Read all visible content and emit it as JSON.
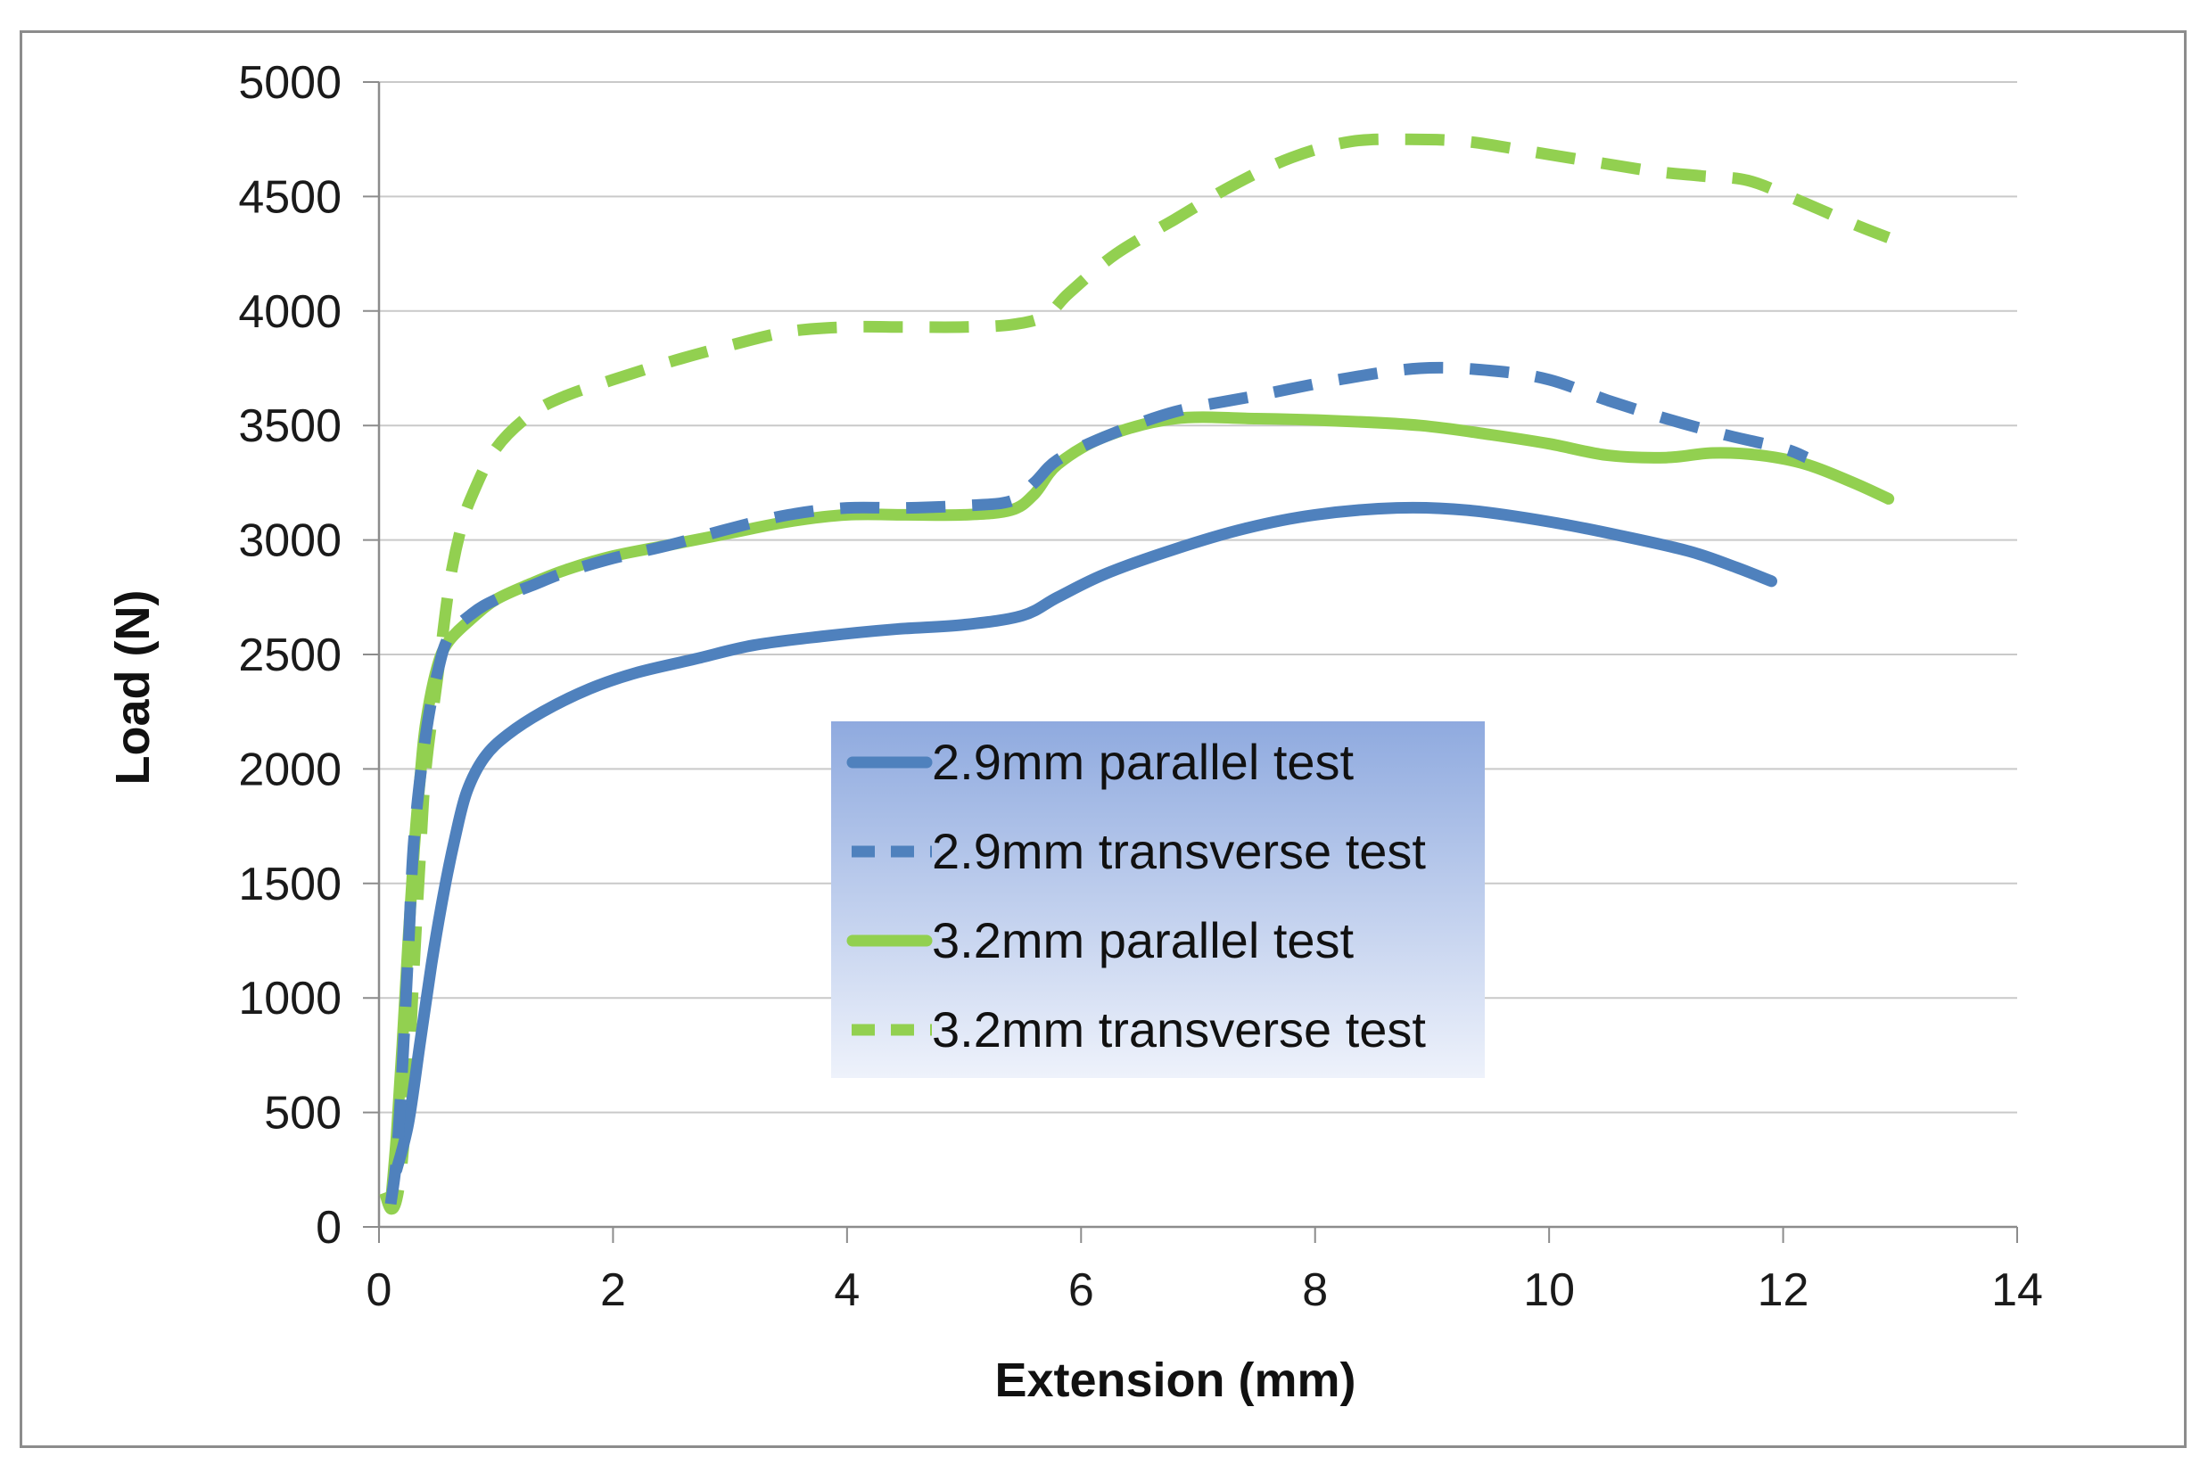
{
  "chart_data": {
    "type": "line",
    "title": "",
    "xlabel": "Extension (mm)",
    "ylabel": "Load (N)",
    "xlim": [
      0,
      14
    ],
    "ylim": [
      0,
      5000
    ],
    "xticks": [
      0,
      2,
      4,
      6,
      8,
      10,
      12,
      14
    ],
    "yticks": [
      0,
      500,
      1000,
      1500,
      2000,
      2500,
      3000,
      3500,
      4000,
      4500,
      5000
    ],
    "grid": "horizontal",
    "legend_position": "center",
    "series": [
      {
        "name": "2.9mm parallel test",
        "color": "#4f81bd",
        "dash": "solid",
        "x": [
          0.15,
          0.25,
          0.35,
          0.45,
          0.55,
          0.65,
          0.75,
          0.9,
          1.1,
          1.4,
          1.8,
          2.2,
          2.7,
          3.2,
          3.8,
          4.4,
          5.0,
          5.5,
          5.8,
          6.2,
          6.8,
          7.4,
          8.0,
          8.7,
          9.3,
          10.0,
          10.6,
          11.2,
          11.6,
          11.9
        ],
        "y": [
          250,
          450,
          800,
          1150,
          1450,
          1700,
          1900,
          2050,
          2150,
          2250,
          2350,
          2420,
          2480,
          2540,
          2580,
          2610,
          2630,
          2670,
          2750,
          2850,
          2960,
          3050,
          3110,
          3140,
          3130,
          3080,
          3020,
          2950,
          2880,
          2820
        ]
      },
      {
        "name": "2.9mm transverse test",
        "color": "#4f81bd",
        "dash": "dashed",
        "x": [
          0.1,
          0.15,
          0.2,
          0.25,
          0.3,
          0.4,
          0.5,
          0.6,
          0.8,
          1.0,
          1.3,
          1.6,
          2.0,
          2.5,
          3.0,
          3.5,
          4.0,
          4.5,
          5.0,
          5.4,
          5.6,
          5.8,
          6.2,
          6.8,
          7.5,
          8.2,
          8.9,
          9.5,
          10.0,
          10.5,
          11.0,
          11.5,
          12.0,
          12.2
        ],
        "y": [
          100,
          300,
          700,
          1200,
          1700,
          2150,
          2420,
          2580,
          2680,
          2740,
          2800,
          2860,
          2920,
          2980,
          3050,
          3110,
          3140,
          3140,
          3150,
          3170,
          3250,
          3350,
          3450,
          3560,
          3630,
          3700,
          3750,
          3740,
          3700,
          3610,
          3530,
          3460,
          3400,
          3360
        ]
      },
      {
        "name": "3.2mm parallel test",
        "color": "#92d050",
        "dash": "solid",
        "x": [
          0.1,
          0.15,
          0.2,
          0.25,
          0.3,
          0.35,
          0.4,
          0.5,
          0.6,
          0.8,
          1.0,
          1.3,
          1.6,
          2.0,
          2.5,
          3.0,
          3.5,
          4.0,
          4.5,
          5.0,
          5.4,
          5.6,
          5.8,
          6.2,
          6.8,
          7.5,
          8.2,
          8.9,
          9.5,
          10.0,
          10.5,
          11.0,
          11.4,
          11.8,
          12.2,
          12.6,
          12.9
        ],
        "y": [
          100,
          400,
          800,
          1250,
          1650,
          1950,
          2200,
          2450,
          2560,
          2660,
          2740,
          2810,
          2870,
          2930,
          2980,
          3030,
          3080,
          3110,
          3110,
          3110,
          3130,
          3200,
          3330,
          3450,
          3530,
          3530,
          3520,
          3500,
          3460,
          3420,
          3370,
          3360,
          3380,
          3370,
          3330,
          3250,
          3180
        ]
      },
      {
        "name": "3.2mm transverse test",
        "color": "#92d050",
        "dash": "dashed",
        "x": [
          0.05,
          0.1,
          0.15,
          0.2,
          0.25,
          0.3,
          0.35,
          0.4,
          0.5,
          0.6,
          0.7,
          0.8,
          1.0,
          1.3,
          1.6,
          2.0,
          2.5,
          3.0,
          3.5,
          4.0,
          4.5,
          5.0,
          5.4,
          5.7,
          5.9,
          6.3,
          6.8,
          7.3,
          7.8,
          8.3,
          8.8,
          9.3,
          9.8,
          10.4,
          10.9,
          11.3,
          11.7,
          12.1,
          12.6,
          12.9
        ],
        "y": [
          150,
          80,
          120,
          300,
          650,
          1150,
          1600,
          2000,
          2400,
          2800,
          3050,
          3200,
          3400,
          3550,
          3630,
          3700,
          3780,
          3850,
          3910,
          3930,
          3930,
          3930,
          3940,
          3980,
          4080,
          4250,
          4400,
          4550,
          4670,
          4740,
          4750,
          4740,
          4700,
          4650,
          4610,
          4590,
          4570,
          4490,
          4380,
          4320
        ]
      }
    ]
  }
}
